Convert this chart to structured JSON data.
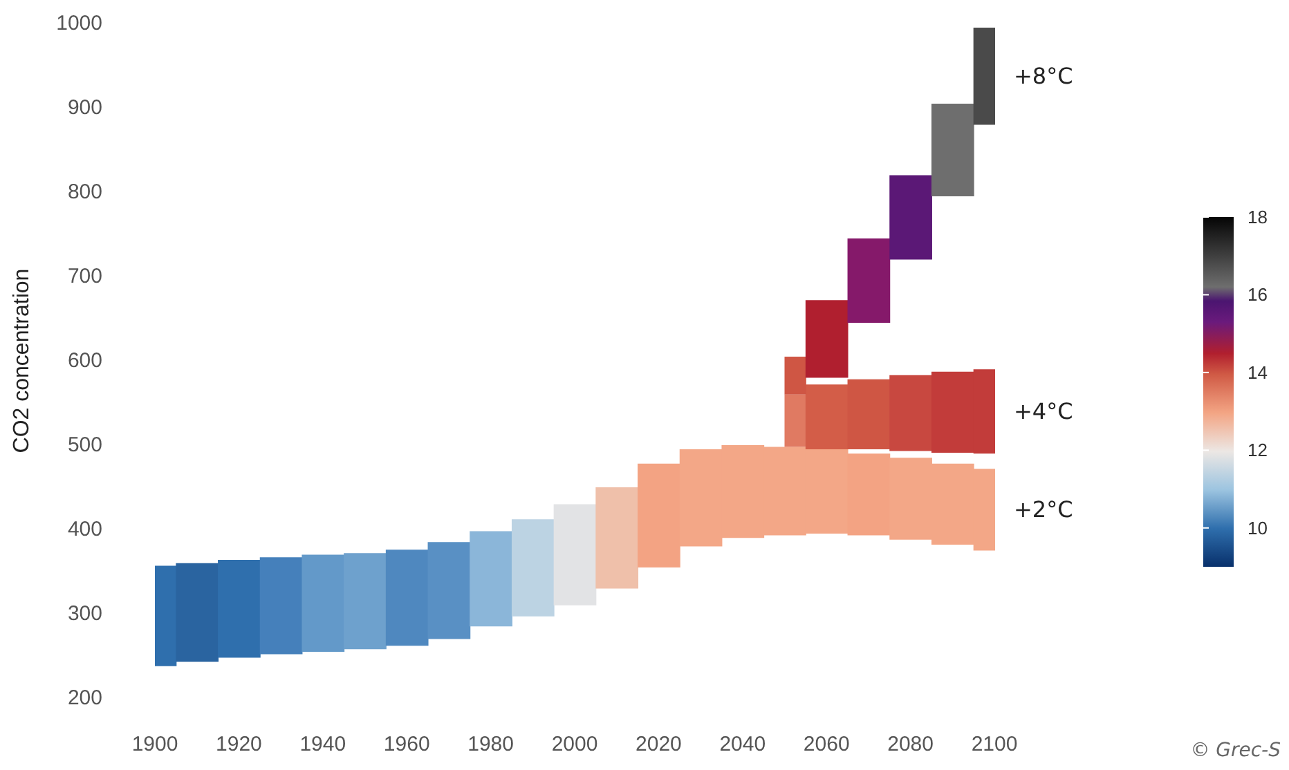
{
  "chart_data": {
    "type": "bar",
    "ylabel": "CO2 concentration",
    "xlim": [
      1900,
      2100
    ],
    "xticks": [
      1900,
      1920,
      1940,
      1960,
      1980,
      2000,
      2020,
      2040,
      2060,
      2080,
      2100
    ],
    "ylim": [
      200,
      1000
    ],
    "yticks": [
      200,
      300,
      400,
      500,
      600,
      700,
      800,
      900,
      1000
    ],
    "clim": [
      9,
      18
    ],
    "cticks": [
      10,
      12,
      14,
      16,
      18
    ],
    "grid": false,
    "annotations": [
      "© Grec-S"
    ],
    "series": [
      {
        "name": "+2°C",
        "x": [
          1900,
          1910,
          1920,
          1930,
          1940,
          1950,
          1960,
          1970,
          1980,
          1990,
          2000,
          2010,
          2020,
          2030,
          2040,
          2050,
          2060,
          2070,
          2080,
          2090,
          2100
        ],
        "base": [
          238,
          243,
          248,
          252,
          255,
          258,
          262,
          270,
          285,
          297,
          310,
          330,
          355,
          380,
          390,
          393,
          395,
          393,
          388,
          382,
          375
        ],
        "values": [
          119,
          117,
          116,
          115,
          115,
          114,
          114,
          115,
          113,
          115,
          120,
          120,
          123,
          115,
          110,
          105,
          100,
          97,
          97,
          96,
          97
        ],
        "colors": [
          "#2f6fad",
          "#2a64a0",
          "#2f6fad",
          "#4580bb",
          "#6399c9",
          "#6ea1cd",
          "#4f88bf",
          "#5990c4",
          "#8bb6d9",
          "#bcd3e3",
          "#e2e3e5",
          "#efc0aa",
          "#f3a383",
          "#f3a787",
          "#f3a787",
          "#f3a787",
          "#f3a787",
          "#f3a383",
          "#f3a787",
          "#f3a787",
          "#f3a787"
        ]
      },
      {
        "name": "+4°C",
        "x": [
          2050,
          2060,
          2070,
          2080,
          2090,
          2100
        ],
        "base": [
          498,
          495,
          495,
          493,
          491,
          490
        ],
        "values": [
          62,
          77,
          83,
          90,
          96,
          100
        ],
        "colors": [
          "#e07a62",
          "#d35d48",
          "#cf5644",
          "#c84840",
          "#c23c3a",
          "#c23c3a"
        ]
      },
      {
        "name": "+8°C",
        "x": [
          2050,
          2060,
          2070,
          2080,
          2090,
          2100
        ],
        "base": [
          560,
          580,
          645,
          720,
          795,
          880
        ],
        "values": [
          45,
          92,
          100,
          100,
          110,
          115
        ],
        "colors": [
          "#cf5644",
          "#b01f2f",
          "#85196a",
          "#5b1876",
          "#6e6e6e",
          "#4a4a4a"
        ]
      }
    ]
  }
}
